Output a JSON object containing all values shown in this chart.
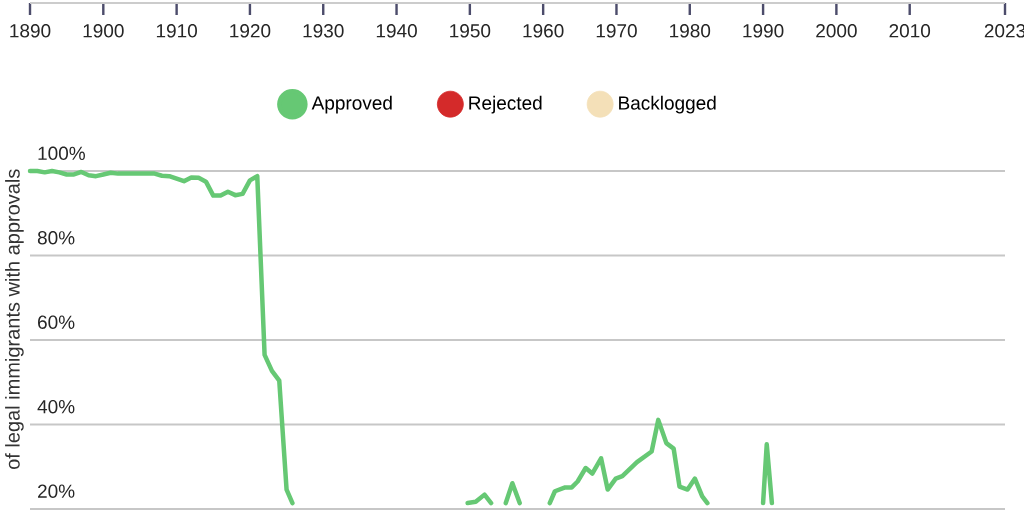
{
  "chart_data": {
    "type": "line",
    "ylabel": "of legal immigrants with approvals",
    "x": [
      1890,
      1891,
      1892,
      1893,
      1894,
      1895,
      1896,
      1897,
      1898,
      1899,
      1900,
      1901,
      1902,
      1903,
      1904,
      1905,
      1906,
      1907,
      1908,
      1909,
      1910,
      1911,
      1912,
      1913,
      1914,
      1915,
      1916,
      1917,
      1918,
      1919,
      1920,
      1921,
      1922,
      1923,
      1924,
      1925,
      1925.8,
      1935,
      1949.7,
      1950.8,
      1952.0,
      1952.9,
      1954,
      1954.9,
      1955.8,
      1956.8,
      1958,
      1960.9,
      1961.6,
      1963.0,
      1963.9,
      1964.7,
      1965.8,
      1966.7,
      1967.9,
      1968.8,
      1969.9,
      1970.8,
      1972.8,
      1974.8,
      1975.7,
      1976.8,
      1977.8,
      1978.6,
      1979.7,
      1980.7,
      1981.7,
      1982.4,
      1986,
      1990.0,
      1990.5,
      1991.2
    ],
    "series": [
      {
        "name": "Approved",
        "color": "#66c874",
        "values": [
          100,
          100,
          99.7,
          100,
          99.7,
          99.2,
          99.2,
          99.8,
          99,
          98.8,
          99.2,
          99.6,
          99.4,
          99.4,
          99.4,
          99.4,
          99.4,
          99.4,
          98.9,
          98.8,
          98.2,
          97.6,
          98.5,
          98.4,
          97.5,
          94.2,
          94.2,
          95.1,
          94.3,
          94.6,
          97.8,
          98.8,
          56.5,
          52.7,
          50.4,
          24.6,
          21.4,
          null,
          21.4,
          21.7,
          23.4,
          21.4,
          null,
          21.4,
          26.1,
          21.4,
          null,
          21.4,
          24.2,
          25.1,
          25.1,
          26.5,
          29.7,
          28.4,
          32.0,
          24.6,
          27.2,
          27.8,
          31.1,
          33.6,
          41.1,
          35.6,
          34.3,
          25.3,
          24.6,
          27.2,
          23.0,
          21.4,
          null,
          21.4,
          35.3,
          21.4
        ]
      },
      {
        "name": "Rejected",
        "color": "#d42a2a",
        "values": [
          null,
          null,
          null,
          null,
          null,
          null,
          null,
          null,
          null,
          null,
          null,
          null,
          null,
          null,
          null,
          null,
          null,
          null,
          null,
          null,
          null,
          null,
          null,
          null,
          null,
          null,
          null,
          null,
          null,
          null,
          null,
          null,
          null,
          null,
          null,
          null,
          null,
          null,
          null,
          null,
          null,
          null,
          null,
          null,
          null,
          null,
          null,
          null,
          null,
          null,
          null,
          null,
          null,
          null,
          null,
          null,
          null,
          null,
          null,
          null,
          null,
          null,
          null,
          null,
          null,
          null,
          null,
          null,
          null,
          null,
          null,
          null
        ]
      },
      {
        "name": "Backlogged",
        "color": "#f4e0b8",
        "values": [
          null,
          null,
          null,
          null,
          null,
          null,
          null,
          null,
          null,
          null,
          null,
          null,
          null,
          null,
          null,
          null,
          null,
          null,
          null,
          null,
          null,
          null,
          null,
          null,
          null,
          null,
          null,
          null,
          null,
          null,
          null,
          null,
          null,
          null,
          null,
          null,
          null,
          null,
          null,
          null,
          null,
          null,
          null,
          null,
          null,
          null,
          null,
          null,
          null,
          null,
          null,
          null,
          null,
          null,
          null,
          null,
          null,
          null,
          null,
          null,
          null,
          null,
          null,
          null,
          null,
          null,
          null,
          null,
          null,
          null,
          null,
          null
        ]
      }
    ],
    "xlim": [
      1890,
      2023
    ],
    "xticks": [
      1890,
      1900,
      1910,
      1920,
      1930,
      1940,
      1950,
      1960,
      1970,
      1980,
      1990,
      2000,
      2010,
      2023
    ],
    "ylim": [
      20,
      139.8
    ],
    "yticks": [
      {
        "value": 20,
        "label": "20%"
      },
      {
        "value": 40,
        "label": "40%"
      },
      {
        "value": 60,
        "label": "60%"
      },
      {
        "value": 80,
        "label": "80%"
      },
      {
        "value": 100,
        "label": "100%"
      }
    ],
    "grid": "y",
    "legend": "top"
  }
}
